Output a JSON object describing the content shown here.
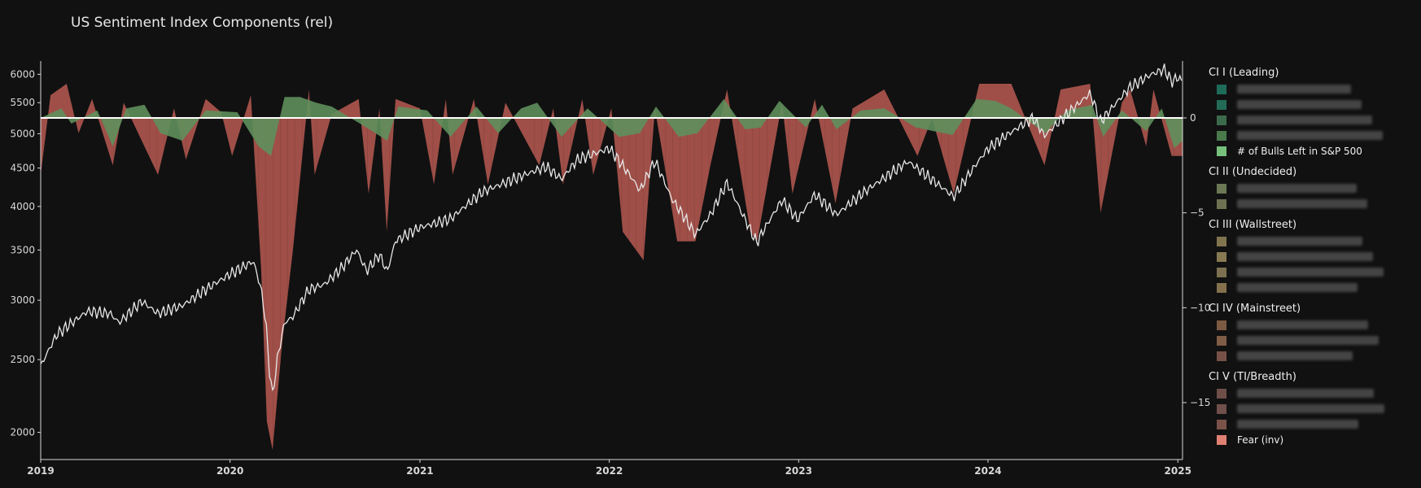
{
  "title": "US Sentiment Index Components (rel)",
  "colors": {
    "background": "#111111",
    "axis": "#d8d8d8",
    "tick_text": "#d8d8d8",
    "sp500_line": "#e8e8e8",
    "fear_area": "#b85b52",
    "bull_area": "#5f8f5c",
    "zero_line": "#ffffff"
  },
  "legend": {
    "groups": [
      {
        "title": "CI I (Leading)",
        "items": [
          {
            "label": "",
            "redacted": true,
            "color": "#1f6b5a"
          },
          {
            "label": "",
            "redacted": true,
            "color": "#236b56"
          },
          {
            "label": "",
            "redacted": true,
            "color": "#3c6a4c"
          },
          {
            "label": "",
            "redacted": true,
            "color": "#4a7a4c"
          },
          {
            "label": "# of Bulls Left in S&P 500",
            "redacted": false,
            "color": "#76c07c"
          }
        ]
      },
      {
        "title": "CI II (Undecided)",
        "items": [
          {
            "label": "",
            "redacted": true,
            "color": "#6a7856"
          },
          {
            "label": "",
            "redacted": true,
            "color": "#6e7052"
          }
        ]
      },
      {
        "title": "CI III (Wallstreet)",
        "items": [
          {
            "label": "",
            "redacted": true,
            "color": "#80744f"
          },
          {
            "label": "",
            "redacted": true,
            "color": "#877a52"
          },
          {
            "label": "",
            "redacted": true,
            "color": "#7c7050"
          },
          {
            "label": "",
            "redacted": true,
            "color": "#83704d"
          }
        ]
      },
      {
        "title": "CI IV (Mainstreet)",
        "items": [
          {
            "label": "",
            "redacted": true,
            "color": "#7c5a42"
          },
          {
            "label": "",
            "redacted": true,
            "color": "#7e5c46"
          },
          {
            "label": "",
            "redacted": true,
            "color": "#775147"
          }
        ]
      },
      {
        "title": "CI V (TI/Breadth)",
        "items": [
          {
            "label": "",
            "redacted": true,
            "color": "#6e4f48"
          },
          {
            "label": "",
            "redacted": true,
            "color": "#70504a"
          },
          {
            "label": "",
            "redacted": true,
            "color": "#7a524a"
          },
          {
            "label": "Fear (inv)",
            "redacted": false,
            "color": "#e08073"
          }
        ]
      }
    ]
  },
  "chart_data": {
    "type": "area",
    "title": "US Sentiment Index Components (rel)",
    "x_ticks": [
      "2019",
      "2020",
      "2021",
      "2022",
      "2023",
      "2024",
      "2025"
    ],
    "x_range": [
      "2019-01-01",
      "2025-01-10"
    ],
    "y_left": {
      "scale": "log",
      "range": [
        1840,
        6250
      ],
      "ticks": [
        2000,
        2500,
        3000,
        3500,
        4000,
        4500,
        5000,
        5500,
        6000
      ],
      "tick_labels": [
        "2000",
        "2500",
        "3000",
        "3500",
        "4000",
        "4500",
        "5000",
        "5500",
        "6000"
      ]
    },
    "y_right": {
      "range": [
        -18,
        3
      ],
      "ticks": [
        0,
        -5,
        -10,
        -15
      ],
      "tick_labels": [
        "0",
        "−5",
        "−10",
        "−15"
      ]
    },
    "series": [
      {
        "name": "S&P 500",
        "axis": "left",
        "points": [
          [
            "2019-01-01",
            2450
          ],
          [
            "2019-02-01",
            2700
          ],
          [
            "2019-04-01",
            2900
          ],
          [
            "2019-05-15",
            2880
          ],
          [
            "2019-06-01",
            2800
          ],
          [
            "2019-07-15",
            2990
          ],
          [
            "2019-08-15",
            2880
          ],
          [
            "2019-10-01",
            2950
          ],
          [
            "2019-11-15",
            3100
          ],
          [
            "2020-01-01",
            3250
          ],
          [
            "2020-02-15",
            3380
          ],
          [
            "2020-03-01",
            3100
          ],
          [
            "2020-03-10",
            2800
          ],
          [
            "2020-03-16",
            2450
          ],
          [
            "2020-03-23",
            2240
          ],
          [
            "2020-04-01",
            2500
          ],
          [
            "2020-04-15",
            2800
          ],
          [
            "2020-05-01",
            2850
          ],
          [
            "2020-06-01",
            3100
          ],
          [
            "2020-07-01",
            3150
          ],
          [
            "2020-08-01",
            3300
          ],
          [
            "2020-09-01",
            3500
          ],
          [
            "2020-09-20",
            3280
          ],
          [
            "2020-10-15",
            3450
          ],
          [
            "2020-10-30",
            3270
          ],
          [
            "2020-11-15",
            3600
          ],
          [
            "2021-01-01",
            3750
          ],
          [
            "2021-03-01",
            3850
          ],
          [
            "2021-05-01",
            4180
          ],
          [
            "2021-07-01",
            4350
          ],
          [
            "2021-09-01",
            4520
          ],
          [
            "2021-10-01",
            4350
          ],
          [
            "2021-11-01",
            4620
          ],
          [
            "2022-01-01",
            4780
          ],
          [
            "2022-02-15",
            4350
          ],
          [
            "2022-03-01",
            4200
          ],
          [
            "2022-03-30",
            4600
          ],
          [
            "2022-05-01",
            4100
          ],
          [
            "2022-06-16",
            3670
          ],
          [
            "2022-07-15",
            3900
          ],
          [
            "2022-08-16",
            4300
          ],
          [
            "2022-09-15",
            3900
          ],
          [
            "2022-10-12",
            3580
          ],
          [
            "2022-11-30",
            4080
          ],
          [
            "2022-12-30",
            3840
          ],
          [
            "2023-02-01",
            4150
          ],
          [
            "2023-03-15",
            3900
          ],
          [
            "2023-05-01",
            4150
          ],
          [
            "2023-07-31",
            4590
          ],
          [
            "2023-10-27",
            4120
          ],
          [
            "2023-12-31",
            4770
          ],
          [
            "2024-02-01",
            4950
          ],
          [
            "2024-03-28",
            5250
          ],
          [
            "2024-04-19",
            4970
          ],
          [
            "2024-07-16",
            5660
          ],
          [
            "2024-08-05",
            5190
          ],
          [
            "2024-09-30",
            5760
          ],
          [
            "2024-11-11",
            6000
          ],
          [
            "2024-12-06",
            6090
          ],
          [
            "2024-12-20",
            5870
          ],
          [
            "2025-01-03",
            5950
          ],
          [
            "2025-01-10",
            5830
          ]
        ]
      },
      {
        "name": "Fear (inv)",
        "axis": "right",
        "points": [
          [
            "2019-01-01",
            -3.0
          ],
          [
            "2019-01-20",
            1.2
          ],
          [
            "2019-02-20",
            1.8
          ],
          [
            "2019-03-15",
            -0.8
          ],
          [
            "2019-04-10",
            1.0
          ],
          [
            "2019-05-20",
            -2.5
          ],
          [
            "2019-06-10",
            0.8
          ],
          [
            "2019-08-15",
            -3.0
          ],
          [
            "2019-09-15",
            0.5
          ],
          [
            "2019-10-08",
            -2.2
          ],
          [
            "2019-11-15",
            1.0
          ],
          [
            "2019-12-15",
            0.3
          ],
          [
            "2020-01-05",
            -2.0
          ],
          [
            "2020-02-10",
            1.2
          ],
          [
            "2020-03-01",
            -8.0
          ],
          [
            "2020-03-12",
            -16.0
          ],
          [
            "2020-03-23",
            -17.5
          ],
          [
            "2020-04-10",
            -12.0
          ],
          [
            "2020-05-01",
            -7.0
          ],
          [
            "2020-06-01",
            1.5
          ],
          [
            "2020-06-12",
            -3.0
          ],
          [
            "2020-07-15",
            0.2
          ],
          [
            "2020-09-05",
            1.0
          ],
          [
            "2020-09-24",
            -4.0
          ],
          [
            "2020-10-15",
            0.5
          ],
          [
            "2020-10-29",
            -6.0
          ],
          [
            "2020-11-15",
            1.0
          ],
          [
            "2021-01-01",
            0.5
          ],
          [
            "2021-01-28",
            -3.5
          ],
          [
            "2021-02-20",
            1.0
          ],
          [
            "2021-03-05",
            -3.0
          ],
          [
            "2021-04-15",
            1.0
          ],
          [
            "2021-05-12",
            -3.5
          ],
          [
            "2021-06-15",
            0.8
          ],
          [
            "2021-08-19",
            -2.5
          ],
          [
            "2021-09-15",
            0.5
          ],
          [
            "2021-10-04",
            -3.5
          ],
          [
            "2021-11-10",
            1.0
          ],
          [
            "2021-12-01",
            -3.0
          ],
          [
            "2022-01-05",
            0.5
          ],
          [
            "2022-01-27",
            -6.0
          ],
          [
            "2022-03-08",
            -7.5
          ],
          [
            "2022-03-30",
            0.5
          ],
          [
            "2022-05-12",
            -6.5
          ],
          [
            "2022-06-16",
            -6.5
          ],
          [
            "2022-07-15",
            -2.5
          ],
          [
            "2022-08-16",
            1.5
          ],
          [
            "2022-09-30",
            -6.0
          ],
          [
            "2022-10-13",
            -6.5
          ],
          [
            "2022-11-30",
            0.8
          ],
          [
            "2022-12-20",
            -4.0
          ],
          [
            "2023-02-01",
            1.0
          ],
          [
            "2023-03-13",
            -4.5
          ],
          [
            "2023-04-15",
            0.5
          ],
          [
            "2023-06-15",
            1.5
          ],
          [
            "2023-08-18",
            -2.0
          ],
          [
            "2023-09-15",
            0.0
          ],
          [
            "2023-10-27",
            -4.0
          ],
          [
            "2023-12-15",
            1.8
          ],
          [
            "2024-02-15",
            1.8
          ],
          [
            "2024-04-19",
            -2.5
          ],
          [
            "2024-05-20",
            1.5
          ],
          [
            "2024-07-16",
            1.8
          ],
          [
            "2024-08-05",
            -5.0
          ],
          [
            "2024-09-15",
            0.8
          ],
          [
            "2024-10-01",
            1.5
          ],
          [
            "2024-11-01",
            -1.5
          ],
          [
            "2024-11-15",
            1.5
          ],
          [
            "2024-12-20",
            -2.0
          ],
          [
            "2025-01-10",
            -2.0
          ]
        ]
      },
      {
        "name": "# of Bulls Left in S&P 500",
        "axis": "right",
        "points": [
          [
            "2019-01-01",
            0.0
          ],
          [
            "2019-02-10",
            0.5
          ],
          [
            "2019-03-01",
            -0.3
          ],
          [
            "2019-04-20",
            0.4
          ],
          [
            "2019-05-20",
            -1.5
          ],
          [
            "2019-06-15",
            0.5
          ],
          [
            "2019-07-20",
            0.7
          ],
          [
            "2019-08-20",
            -0.8
          ],
          [
            "2019-10-01",
            -1.2
          ],
          [
            "2019-11-15",
            0.4
          ],
          [
            "2020-01-15",
            0.3
          ],
          [
            "2020-02-25",
            -1.5
          ],
          [
            "2020-03-20",
            -2.0
          ],
          [
            "2020-04-15",
            1.1
          ],
          [
            "2020-05-15",
            1.1
          ],
          [
            "2020-06-15",
            0.8
          ],
          [
            "2020-07-15",
            0.6
          ],
          [
            "2020-09-20",
            -0.5
          ],
          [
            "2020-10-30",
            -1.2
          ],
          [
            "2020-11-20",
            0.6
          ],
          [
            "2021-01-15",
            0.4
          ],
          [
            "2021-03-01",
            -1.0
          ],
          [
            "2021-04-20",
            0.6
          ],
          [
            "2021-06-01",
            -0.8
          ],
          [
            "2021-07-15",
            0.5
          ],
          [
            "2021-08-15",
            0.8
          ],
          [
            "2021-10-01",
            -1.0
          ],
          [
            "2021-11-20",
            0.5
          ],
          [
            "2022-01-20",
            -1.0
          ],
          [
            "2022-03-01",
            -0.8
          ],
          [
            "2022-04-01",
            0.6
          ],
          [
            "2022-05-15",
            -1.0
          ],
          [
            "2022-06-20",
            -0.8
          ],
          [
            "2022-08-10",
            1.0
          ],
          [
            "2022-09-20",
            -0.6
          ],
          [
            "2022-10-20",
            -0.5
          ],
          [
            "2022-11-25",
            0.9
          ],
          [
            "2023-01-15",
            -0.5
          ],
          [
            "2023-02-15",
            0.7
          ],
          [
            "2023-03-15",
            -0.6
          ],
          [
            "2023-05-01",
            0.4
          ],
          [
            "2023-06-15",
            0.5
          ],
          [
            "2023-08-15",
            -0.5
          ],
          [
            "2023-10-25",
            -0.9
          ],
          [
            "2023-12-10",
            1.0
          ],
          [
            "2024-01-15",
            0.9
          ],
          [
            "2024-02-15",
            0.5
          ],
          [
            "2024-04-20",
            -0.8
          ],
          [
            "2024-06-01",
            0.4
          ],
          [
            "2024-07-20",
            0.7
          ],
          [
            "2024-08-10",
            -1.0
          ],
          [
            "2024-09-15",
            0.4
          ],
          [
            "2024-11-01",
            -0.7
          ],
          [
            "2024-12-01",
            0.5
          ],
          [
            "2024-12-25",
            -1.6
          ],
          [
            "2025-01-10",
            -1.2
          ]
        ]
      }
    ]
  }
}
